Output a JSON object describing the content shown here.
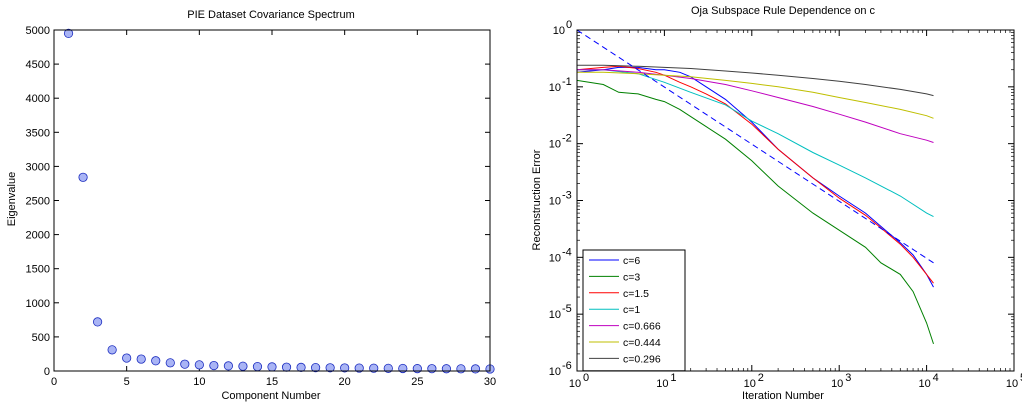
{
  "colors": {
    "scatter_face": "#a9b4f5",
    "scatter_edge": "#1a2bbf",
    "series": [
      "#0000ff",
      "#008000",
      "#ff0000",
      "#00bfbf",
      "#bf00bf",
      "#bfbf00",
      "#404040"
    ],
    "dashed_reference": "#0000ff"
  },
  "chart_data": [
    {
      "type": "scatter",
      "title": "PIE Dataset Covariance Spectrum",
      "xlabel": "Component Number",
      "ylabel": "Eigenvalue",
      "xlim": [
        0,
        30
      ],
      "ylim": [
        0,
        5000
      ],
      "xticks": [
        "0",
        "5",
        "10",
        "15",
        "20",
        "25",
        "30"
      ],
      "yticks": [
        "0",
        "500",
        "1000",
        "1500",
        "2000",
        "2500",
        "3000",
        "3500",
        "4000",
        "4500",
        "5000"
      ],
      "grid": false,
      "x": [
        1,
        2,
        3,
        4,
        5,
        6,
        7,
        8,
        9,
        10,
        11,
        12,
        13,
        14,
        15,
        16,
        17,
        18,
        19,
        20,
        21,
        22,
        23,
        24,
        25,
        26,
        27,
        28,
        29,
        30
      ],
      "y": [
        4950,
        2840,
        720,
        310,
        190,
        175,
        150,
        120,
        100,
        90,
        80,
        75,
        70,
        65,
        60,
        56,
        53,
        50,
        47,
        45,
        43,
        41,
        39,
        37,
        35,
        34,
        33,
        32,
        31,
        30
      ]
    },
    {
      "type": "line",
      "title": "Oja Subspace Rule Dependence on c",
      "xlabel": "Iteration Number",
      "ylabel": "Reconstruction Error",
      "xscale": "log",
      "yscale": "log",
      "xlim": [
        1,
        100000
      ],
      "ylim": [
        1e-06,
        1
      ],
      "xticks": [
        {
          "base": "10",
          "exp": "0"
        },
        {
          "base": "10",
          "exp": "1"
        },
        {
          "base": "10",
          "exp": "2"
        },
        {
          "base": "10",
          "exp": "3"
        },
        {
          "base": "10",
          "exp": "4"
        },
        {
          "base": "10",
          "exp": "5"
        }
      ],
      "yticks": [
        {
          "base": "10",
          "exp": "0"
        },
        {
          "base": "10",
          "exp": "-1"
        },
        {
          "base": "10",
          "exp": "-2"
        },
        {
          "base": "10",
          "exp": "-3"
        },
        {
          "base": "10",
          "exp": "-4"
        },
        {
          "base": "10",
          "exp": "-5"
        },
        {
          "base": "10",
          "exp": "-6"
        }
      ],
      "grid": false,
      "legend_position": "bottom-left",
      "series": [
        {
          "name": "c=6",
          "x": [
            1,
            2,
            3,
            5,
            8,
            10,
            15,
            20,
            30,
            50,
            100,
            200,
            500,
            1000,
            2000,
            3000,
            5000,
            7000,
            10000,
            12000
          ],
          "y": [
            0.18,
            0.2,
            0.22,
            0.22,
            0.2,
            0.2,
            0.18,
            0.15,
            0.1,
            0.06,
            0.024,
            0.008,
            0.0025,
            0.0012,
            0.0006,
            0.00035,
            0.00018,
            0.00011,
            5e-05,
            3e-05
          ]
        },
        {
          "name": "c=3",
          "x": [
            1,
            2,
            3,
            5,
            8,
            10,
            15,
            20,
            30,
            50,
            100,
            200,
            500,
            1000,
            2000,
            3000,
            5000,
            7000,
            10000,
            12000
          ],
          "y": [
            0.13,
            0.11,
            0.08,
            0.075,
            0.06,
            0.055,
            0.04,
            0.03,
            0.02,
            0.012,
            0.005,
            0.0018,
            0.0006,
            0.0003,
            0.00015,
            8e-05,
            5e-05,
            2.5e-05,
            7e-06,
            3e-06
          ]
        },
        {
          "name": "c=1.5",
          "x": [
            1,
            2,
            3,
            5,
            8,
            10,
            15,
            20,
            30,
            50,
            100,
            200,
            500,
            1000,
            2000,
            3000,
            5000,
            7000,
            10000,
            12000
          ],
          "y": [
            0.2,
            0.22,
            0.23,
            0.21,
            0.18,
            0.16,
            0.12,
            0.1,
            0.075,
            0.05,
            0.022,
            0.008,
            0.0025,
            0.0011,
            0.00055,
            0.00033,
            0.00017,
            0.0001,
            5e-05,
            3.5e-05
          ]
        },
        {
          "name": "c=1",
          "x": [
            1,
            2,
            5,
            10,
            20,
            50,
            100,
            200,
            500,
            1000,
            2000,
            5000,
            10000,
            12000
          ],
          "y": [
            0.2,
            0.2,
            0.17,
            0.12,
            0.08,
            0.048,
            0.025,
            0.015,
            0.007,
            0.0042,
            0.0025,
            0.0012,
            0.0006,
            0.00052
          ]
        },
        {
          "name": "c=0.666",
          "x": [
            1,
            2,
            5,
            10,
            20,
            50,
            100,
            200,
            500,
            1000,
            2000,
            5000,
            10000,
            12000
          ],
          "y": [
            0.2,
            0.2,
            0.18,
            0.16,
            0.14,
            0.11,
            0.085,
            0.065,
            0.045,
            0.033,
            0.024,
            0.015,
            0.0115,
            0.0105
          ]
        },
        {
          "name": "c=0.444",
          "x": [
            1,
            2,
            5,
            10,
            20,
            50,
            100,
            200,
            500,
            1000,
            2000,
            5000,
            10000,
            12000
          ],
          "y": [
            0.18,
            0.18,
            0.17,
            0.16,
            0.15,
            0.13,
            0.115,
            0.1,
            0.08,
            0.065,
            0.053,
            0.04,
            0.031,
            0.028
          ]
        },
        {
          "name": "c=0.296",
          "x": [
            1,
            2,
            5,
            10,
            20,
            50,
            100,
            200,
            500,
            1000,
            2000,
            5000,
            10000,
            12000
          ],
          "y": [
            0.24,
            0.24,
            0.23,
            0.22,
            0.21,
            0.19,
            0.175,
            0.16,
            0.14,
            0.125,
            0.11,
            0.09,
            0.075,
            0.07
          ]
        }
      ],
      "reference_line": {
        "style": "dashed",
        "x": [
          1,
          12000
        ],
        "y": [
          1,
          8e-05
        ]
      }
    }
  ]
}
